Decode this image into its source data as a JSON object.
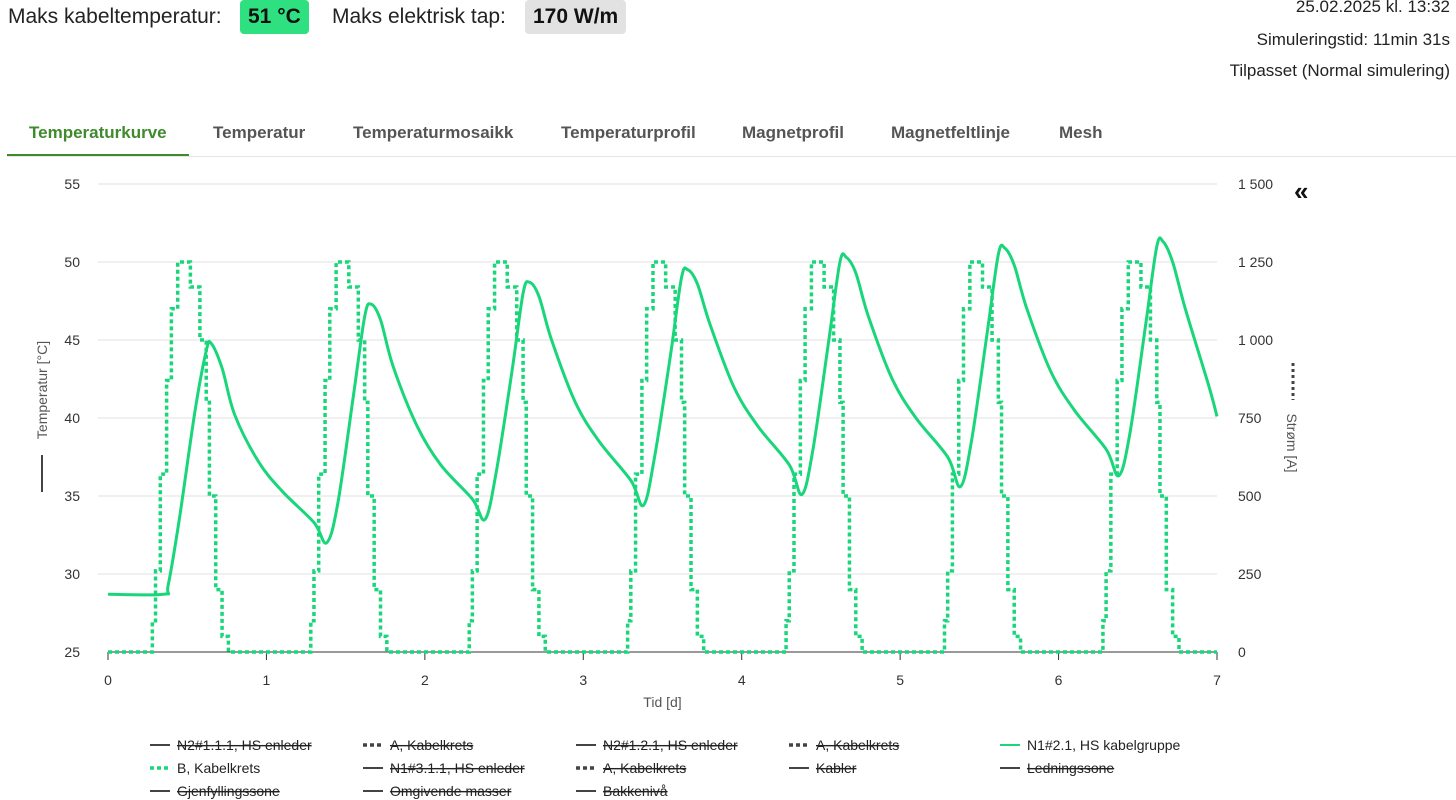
{
  "header": {
    "max_cable_temp_label": "Maks kabeltemperatur:",
    "max_cable_temp_value": "51 °C",
    "max_loss_label": "Maks elektrisk tap:",
    "max_loss_value": "170 W/m",
    "timestamp": "25.02.2025 kl. 13:32",
    "sim_time": "Simuleringstid: 11min 31s",
    "mode": "Tilpasset (Normal simulering)"
  },
  "tabs": [
    {
      "label": "Temperaturkurve",
      "active": true
    },
    {
      "label": "Temperatur"
    },
    {
      "label": "Temperaturmosaikk"
    },
    {
      "label": "Temperaturprofil"
    },
    {
      "label": "Magnetprofil"
    },
    {
      "label": "Magnetfeltlinje"
    },
    {
      "label": "Mesh"
    }
  ],
  "collapse_icon": "«",
  "colors": {
    "series": "#19d67a",
    "hidden": "#444444",
    "grid": "#e0e0e0"
  },
  "chart_data": {
    "type": "line",
    "xlabel": "Tid [d]",
    "ylabel_left": "Temperatur [°C]",
    "ylabel_right": "Strøm [A]",
    "xlim": [
      0,
      7
    ],
    "ylim_left": [
      25,
      55
    ],
    "ylim_right": [
      0,
      1500
    ],
    "x_ticks": [
      "0",
      "1",
      "2",
      "3",
      "4",
      "5",
      "6",
      "7"
    ],
    "y_ticks_left": [
      "25",
      "30",
      "35",
      "40",
      "45",
      "50",
      "55"
    ],
    "y_ticks_right": [
      "0",
      "250",
      "500",
      "750",
      "1 000",
      "1 250",
      "1 500"
    ],
    "grid": true,
    "legend_position": "bottom",
    "temperature_series": {
      "name": "N1#2.1, HS kabelgruppe",
      "x": [
        0,
        0.35,
        0.38,
        0.45,
        0.55,
        0.62,
        0.65,
        0.72,
        0.8,
        0.95,
        1.1,
        1.3,
        1.38,
        1.45,
        1.55,
        1.62,
        1.66,
        1.72,
        1.8,
        1.95,
        2.1,
        2.3,
        2.38,
        2.45,
        2.55,
        2.62,
        2.66,
        2.72,
        2.8,
        2.95,
        3.1,
        3.3,
        3.38,
        3.45,
        3.55,
        3.62,
        3.66,
        3.72,
        3.8,
        3.95,
        4.1,
        4.3,
        4.38,
        4.45,
        4.55,
        4.62,
        4.66,
        4.72,
        4.8,
        4.95,
        5.1,
        5.3,
        5.38,
        5.45,
        5.55,
        5.62,
        5.66,
        5.72,
        5.8,
        5.95,
        6.1,
        6.3,
        6.38,
        6.45,
        6.55,
        6.62,
        6.66,
        6.72,
        6.8,
        6.95,
        7.0
      ],
      "y": [
        28.7,
        28.7,
        29.3,
        33.5,
        40.5,
        44.3,
        44.8,
        43.2,
        40.2,
        37.2,
        35.3,
        33.3,
        32.0,
        34.5,
        41.5,
        46.5,
        47.3,
        46.3,
        43.3,
        39.5,
        37.0,
        34.8,
        33.5,
        36.5,
        43.0,
        48.0,
        48.7,
        47.8,
        45.0,
        41.0,
        38.5,
        36.0,
        34.4,
        37.5,
        44.0,
        49.0,
        49.5,
        48.6,
        46.0,
        42.0,
        39.5,
        37.0,
        35.1,
        38.0,
        45.0,
        50.0,
        50.3,
        49.3,
        46.5,
        42.5,
        40.0,
        37.5,
        35.6,
        38.5,
        45.5,
        50.5,
        50.9,
        49.8,
        47.0,
        43.0,
        40.5,
        38.0,
        36.3,
        39.0,
        46.0,
        51.0,
        51.3,
        50.0,
        47.0,
        42.0,
        40.1
      ]
    },
    "current_series": {
      "name": "B, Kabelkrets",
      "x": [
        0,
        0.28,
        0.3,
        0.33,
        0.37,
        0.4,
        0.44,
        0.48,
        0.52,
        0.58,
        0.62,
        0.64,
        0.68,
        0.72,
        0.76,
        0.8,
        1.28,
        1.3,
        1.33,
        1.37,
        1.4,
        1.44,
        1.48,
        1.52,
        1.58,
        1.62,
        1.64,
        1.68,
        1.72,
        1.76,
        1.8,
        2.28,
        2.3,
        2.33,
        2.37,
        2.4,
        2.44,
        2.48,
        2.52,
        2.58,
        2.62,
        2.64,
        2.68,
        2.72,
        2.76,
        2.8,
        3.28,
        3.3,
        3.33,
        3.37,
        3.4,
        3.44,
        3.48,
        3.52,
        3.58,
        3.62,
        3.64,
        3.68,
        3.72,
        3.76,
        3.8,
        4.28,
        4.3,
        4.33,
        4.37,
        4.4,
        4.44,
        4.48,
        4.52,
        4.58,
        4.62,
        4.64,
        4.68,
        4.72,
        4.76,
        4.8,
        5.28,
        5.3,
        5.33,
        5.37,
        5.4,
        5.44,
        5.48,
        5.52,
        5.58,
        5.62,
        5.64,
        5.68,
        5.72,
        5.76,
        5.8,
        6.28,
        6.3,
        6.33,
        6.37,
        6.4,
        6.44,
        6.48,
        6.52,
        6.58,
        6.62,
        6.64,
        6.68,
        6.72,
        6.76,
        6.8,
        7.0
      ],
      "y": [
        0,
        100,
        260,
        570,
        870,
        1100,
        1250,
        1250,
        1170,
        1000,
        800,
        500,
        200,
        50,
        0,
        0,
        100,
        260,
        570,
        870,
        1100,
        1250,
        1250,
        1170,
        1000,
        800,
        500,
        200,
        50,
        0,
        0,
        100,
        260,
        570,
        870,
        1100,
        1250,
        1250,
        1170,
        1000,
        800,
        500,
        200,
        50,
        0,
        0,
        100,
        260,
        570,
        870,
        1100,
        1250,
        1250,
        1170,
        1000,
        800,
        500,
        200,
        50,
        0,
        0,
        100,
        260,
        570,
        870,
        1100,
        1250,
        1250,
        1170,
        1000,
        800,
        500,
        200,
        50,
        0,
        0,
        100,
        260,
        570,
        870,
        1100,
        1250,
        1250,
        1170,
        1000,
        800,
        500,
        200,
        50,
        0,
        0,
        100,
        260,
        570,
        870,
        1100,
        1250,
        1250,
        1170,
        1000,
        800,
        500,
        200,
        50,
        0,
        0,
        0
      ]
    },
    "legend": [
      {
        "name": "N2#1.1.1, HS enleder",
        "style": "solid",
        "hidden": true
      },
      {
        "name": "A, Kabelkrets",
        "style": "dotted",
        "hidden": true
      },
      {
        "name": "N2#1.2.1, HS enleder",
        "style": "solid",
        "hidden": true
      },
      {
        "name": "A, Kabelkrets",
        "style": "dotted",
        "hidden": true
      },
      {
        "name": "N1#2.1, HS kabelgruppe",
        "style": "solid",
        "hidden": false
      },
      {
        "name": "B, Kabelkrets",
        "style": "dotted",
        "hidden": false
      },
      {
        "name": "N1#3.1.1, HS enleder",
        "style": "solid",
        "hidden": true
      },
      {
        "name": "A, Kabelkrets",
        "style": "dotted",
        "hidden": true
      },
      {
        "name": "Kabler",
        "style": "solid",
        "hidden": true
      },
      {
        "name": "Ledningssone",
        "style": "solid",
        "hidden": true
      },
      {
        "name": "Gjenfyllingssone",
        "style": "solid",
        "hidden": true
      },
      {
        "name": "Omgivende masser",
        "style": "solid",
        "hidden": true
      },
      {
        "name": "Bakkenivå",
        "style": "solid",
        "hidden": true
      }
    ]
  }
}
